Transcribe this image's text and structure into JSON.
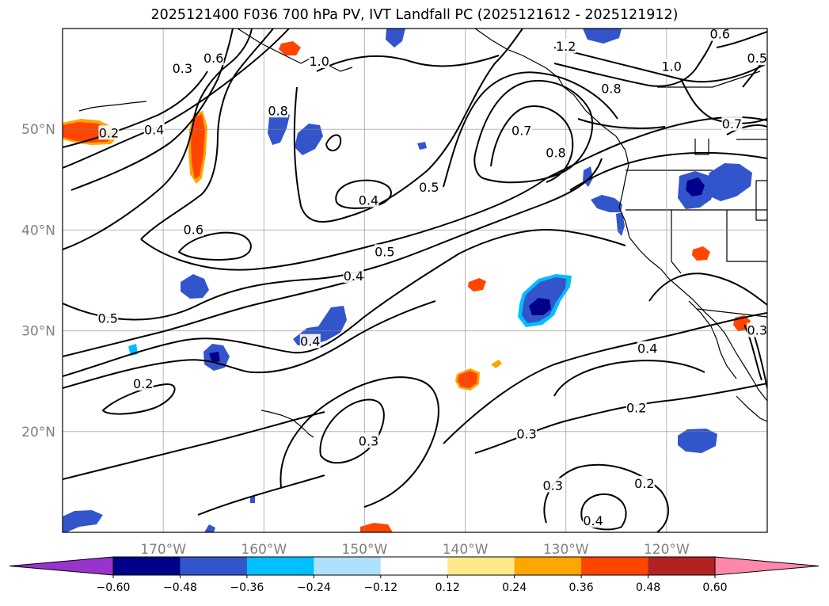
{
  "title": "2025121400 F036 700 hPa PV, IVT Landfall PC (2025121612 - 2025121912)",
  "map": {
    "lon_range": [
      -180,
      -110
    ],
    "lat_range": [
      10,
      60
    ],
    "lat_ticks": [
      {
        "lat": 20,
        "label": "20°N"
      },
      {
        "lat": 30,
        "label": "30°N"
      },
      {
        "lat": 40,
        "label": "40°N"
      },
      {
        "lat": 50,
        "label": "50°N"
      }
    ],
    "lon_ticks": [
      {
        "lon": -170,
        "label": "170°W"
      },
      {
        "lon": -160,
        "label": "160°W"
      },
      {
        "lon": -150,
        "label": "150°W"
      },
      {
        "lon": -140,
        "label": "140°W"
      },
      {
        "lon": -130,
        "label": "130°W"
      },
      {
        "lon": -120,
        "label": "120°W"
      }
    ],
    "grid": true
  },
  "contour_labels": [
    {
      "text": "0.2",
      "lon": -175.4,
      "lat": 49.6
    },
    {
      "text": "0.4",
      "lon": -170.9,
      "lat": 49.9
    },
    {
      "text": "0.3",
      "lon": -168.1,
      "lat": 56.0
    },
    {
      "text": "0.6",
      "lon": -165.0,
      "lat": 57.0
    },
    {
      "text": "0.8",
      "lon": -158.6,
      "lat": 51.8
    },
    {
      "text": "1.0",
      "lon": -154.5,
      "lat": 56.7
    },
    {
      "text": "0.4",
      "lon": -149.6,
      "lat": 42.9
    },
    {
      "text": "0.5",
      "lon": -143.6,
      "lat": 44.2
    },
    {
      "text": "0.6",
      "lon": -167.0,
      "lat": 40.0
    },
    {
      "text": "0.5",
      "lon": -148.0,
      "lat": 37.8
    },
    {
      "text": "0.4",
      "lon": -151.1,
      "lat": 35.4
    },
    {
      "text": "0.5",
      "lon": -175.5,
      "lat": 31.2
    },
    {
      "text": "0.4",
      "lon": -155.4,
      "lat": 28.9
    },
    {
      "text": "0.2",
      "lon": -172.0,
      "lat": 24.7
    },
    {
      "text": "0.3",
      "lon": -149.6,
      "lat": 19.0
    },
    {
      "text": "0.7",
      "lon": -134.4,
      "lat": 49.8
    },
    {
      "text": "0.8",
      "lon": -131.0,
      "lat": 47.6
    },
    {
      "text": "1.2",
      "lon": -130.0,
      "lat": 58.2
    },
    {
      "text": "0.8",
      "lon": -125.5,
      "lat": 54.0
    },
    {
      "text": "1.0",
      "lon": -119.5,
      "lat": 56.2
    },
    {
      "text": "0.6",
      "lon": -114.7,
      "lat": 59.4
    },
    {
      "text": "0.5",
      "lon": -111.0,
      "lat": 57.0
    },
    {
      "text": "0.7",
      "lon": -113.5,
      "lat": 50.5
    },
    {
      "text": "0.4",
      "lon": -121.9,
      "lat": 28.2
    },
    {
      "text": "0.2",
      "lon": -123.0,
      "lat": 22.3
    },
    {
      "text": "0.3",
      "lon": -133.9,
      "lat": 19.7
    },
    {
      "text": "0.3",
      "lon": -131.3,
      "lat": 14.6
    },
    {
      "text": "0.2",
      "lon": -122.2,
      "lat": 14.8
    },
    {
      "text": "0.4",
      "lon": -127.3,
      "lat": 11.1
    },
    {
      "text": "0.3",
      "lon": -111.0,
      "lat": 30.0
    }
  ],
  "colorbar": {
    "ticks": [
      "−0.60",
      "−0.48",
      "−0.36",
      "−0.24",
      "−0.12",
      "0.12",
      "0.24",
      "0.36",
      "0.48",
      "0.60"
    ],
    "colors": [
      "#9933cc",
      "#00008b",
      "#3355cc",
      "#00bfff",
      "#aee0ff",
      "#ffffff",
      "#ffe98a",
      "#ffa500",
      "#ff4500",
      "#b22222",
      "#ff88aa"
    ],
    "extend": "both"
  },
  "shading_colors": {
    "neg_light": "#00bfff",
    "neg_mid": "#3355cc",
    "neg_dark": "#00008b",
    "pos_light": "#ffa500",
    "pos_mid": "#ff4500",
    "pos_pale": "#ffe98a"
  }
}
